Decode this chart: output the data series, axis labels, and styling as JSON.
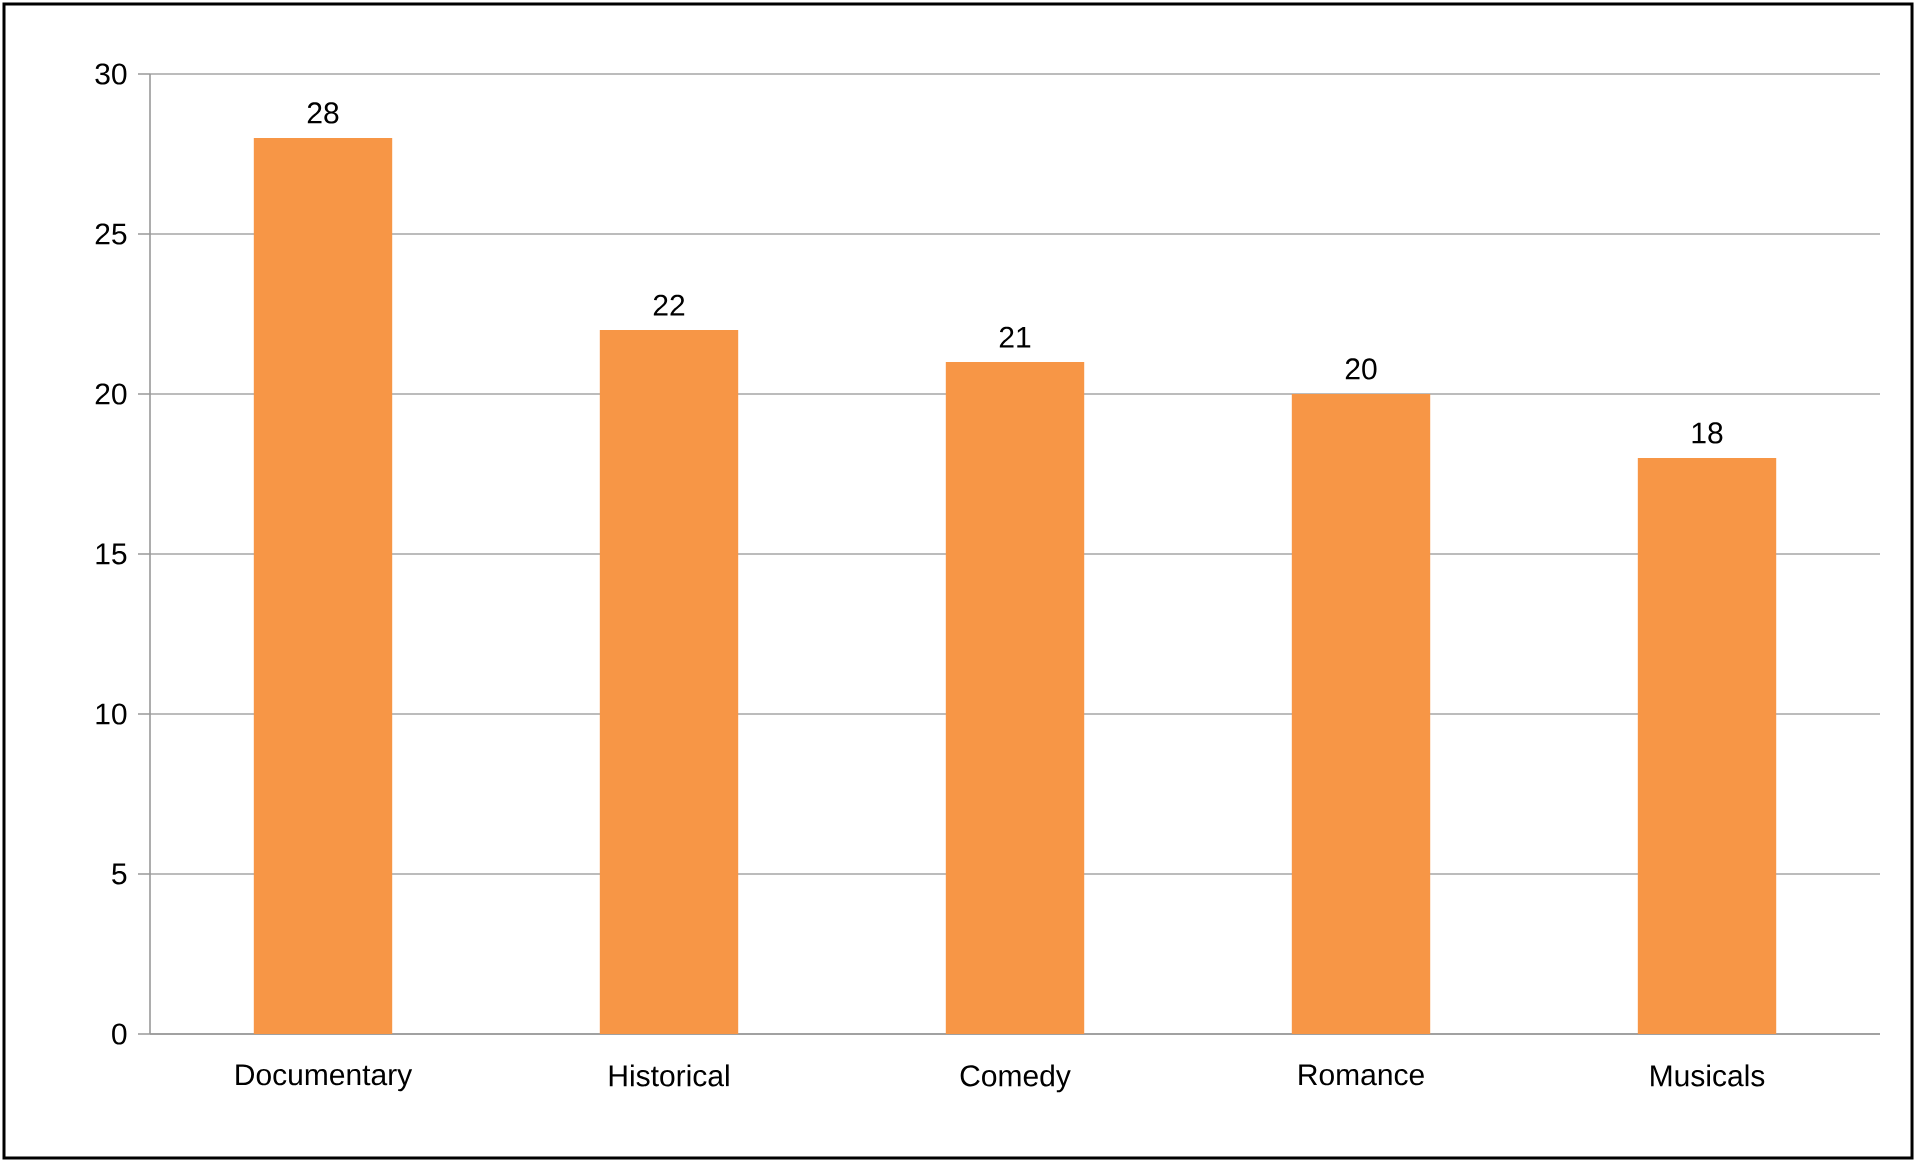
{
  "chart_data": {
    "type": "bar",
    "categories": [
      "Documentary",
      "Historical",
      "Comedy",
      "Romance",
      "Musicals"
    ],
    "values": [
      28,
      22,
      21,
      20,
      18
    ],
    "color": "#f79646",
    "ylim": [
      0,
      30
    ],
    "yticks": [
      0,
      5,
      10,
      15,
      20,
      25,
      30
    ],
    "grid": "y",
    "data_labels": true
  }
}
